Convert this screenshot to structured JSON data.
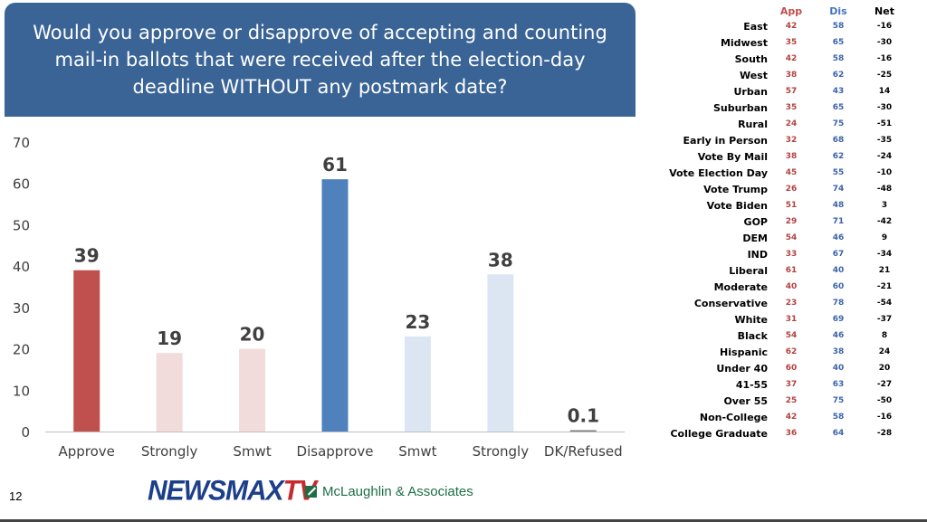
{
  "title": "Would you approve or disapprove of accepting and counting mail-in ballots that were received after the election-day deadline WITHOUT any postmark date?",
  "chart_data": {
    "type": "bar",
    "categories": [
      "Approve",
      "Strongly",
      "Smwt",
      "Disapprove",
      "Smwt",
      "Strongly",
      "DK/Refused"
    ],
    "values": [
      39,
      19,
      20,
      61,
      23,
      38,
      0.1
    ],
    "value_labels": [
      "39",
      "19",
      "20",
      "61",
      "23",
      "38",
      "0.1"
    ],
    "bar_colors": [
      "#c0504d",
      "#f2dcdb",
      "#f2dcdb",
      "#4f81bd",
      "#dce6f2",
      "#dce6f2",
      "#7f7f7f"
    ],
    "yticks": [
      "0",
      "10",
      "20",
      "30",
      "40",
      "50",
      "60",
      "70"
    ],
    "ylim": [
      0,
      70
    ],
    "grid": false
  },
  "table": {
    "headers": {
      "app": "App",
      "dis": "Dis",
      "net": "Net"
    },
    "rows": [
      {
        "label": "East",
        "app": "42",
        "dis": "58",
        "net": "-16"
      },
      {
        "label": "Midwest",
        "app": "35",
        "dis": "65",
        "net": "-30"
      },
      {
        "label": "South",
        "app": "42",
        "dis": "58",
        "net": "-16"
      },
      {
        "label": "West",
        "app": "38",
        "dis": "62",
        "net": "-25"
      },
      {
        "label": "Urban",
        "app": "57",
        "dis": "43",
        "net": "14"
      },
      {
        "label": "Suburban",
        "app": "35",
        "dis": "65",
        "net": "-30"
      },
      {
        "label": "Rural",
        "app": "24",
        "dis": "75",
        "net": "-51"
      },
      {
        "label": "Early in Person",
        "app": "32",
        "dis": "68",
        "net": "-35"
      },
      {
        "label": "Vote By Mail",
        "app": "38",
        "dis": "62",
        "net": "-24"
      },
      {
        "label": "Vote Election Day",
        "app": "45",
        "dis": "55",
        "net": "-10"
      },
      {
        "label": "Vote Trump",
        "app": "26",
        "dis": "74",
        "net": "-48"
      },
      {
        "label": "Vote Biden",
        "app": "51",
        "dis": "48",
        "net": "3"
      },
      {
        "label": "GOP",
        "app": "29",
        "dis": "71",
        "net": "-42"
      },
      {
        "label": "DEM",
        "app": "54",
        "dis": "46",
        "net": "9"
      },
      {
        "label": "IND",
        "app": "33",
        "dis": "67",
        "net": "-34"
      },
      {
        "label": "Liberal",
        "app": "61",
        "dis": "40",
        "net": "21"
      },
      {
        "label": "Moderate",
        "app": "40",
        "dis": "60",
        "net": "-21"
      },
      {
        "label": "Conservative",
        "app": "23",
        "dis": "78",
        "net": "-54"
      },
      {
        "label": "White",
        "app": "31",
        "dis": "69",
        "net": "-37"
      },
      {
        "label": "Black",
        "app": "54",
        "dis": "46",
        "net": "8"
      },
      {
        "label": "Hispanic",
        "app": "62",
        "dis": "38",
        "net": "24"
      },
      {
        "label": "Under 40",
        "app": "60",
        "dis": "40",
        "net": "20"
      },
      {
        "label": "41-55",
        "app": "37",
        "dis": "63",
        "net": "-27"
      },
      {
        "label": "Over 55",
        "app": "25",
        "dis": "75",
        "net": "-50"
      },
      {
        "label": "Non-College",
        "app": "42",
        "dis": "58",
        "net": "-16"
      },
      {
        "label": "College Graduate",
        "app": "36",
        "dis": "64",
        "net": "-28"
      }
    ]
  },
  "footer": {
    "page_number": "12",
    "logo_newsmax": "NEWSMAX",
    "logo_tv": "TV",
    "mclaughlin_text": "McLaughlin & Associates"
  }
}
